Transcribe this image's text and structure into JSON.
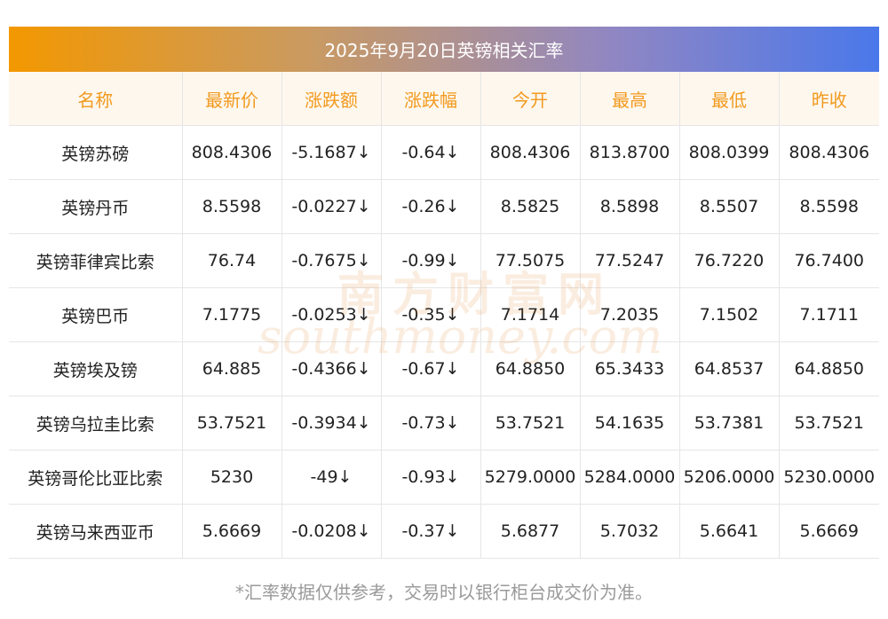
{
  "title": "2025年9月20日英镑相关汇率",
  "columns": [
    "名称",
    "最新价",
    "涨跌额",
    "涨跌幅",
    "今开",
    "最高",
    "最低",
    "昨收"
  ],
  "rows": [
    [
      "英镑苏磅",
      "808.4306",
      "-5.1687↓",
      "-0.64↓",
      "808.4306",
      "813.8700",
      "808.0399",
      "808.4306"
    ],
    [
      "英镑丹币",
      "8.5598",
      "-0.0227↓",
      "-0.26↓",
      "8.5825",
      "8.5898",
      "8.5507",
      "8.5598"
    ],
    [
      "英镑菲律宾比索",
      "76.74",
      "-0.7675↓",
      "-0.99↓",
      "77.5075",
      "77.5247",
      "76.7220",
      "76.7400"
    ],
    [
      "英镑巴币",
      "7.1775",
      "-0.0253↓",
      "-0.35↓",
      "7.1714",
      "7.2035",
      "7.1502",
      "7.1711"
    ],
    [
      "英镑埃及镑",
      "64.885",
      "-0.4366↓",
      "-0.67↓",
      "64.8850",
      "65.3433",
      "64.8537",
      "64.8850"
    ],
    [
      "英镑乌拉圭比索",
      "53.7521",
      "-0.3934↓",
      "-0.73↓",
      "53.7521",
      "54.1635",
      "53.7381",
      "53.7521"
    ],
    [
      "英镑哥伦比亚比索",
      "5230",
      "-49↓",
      "-0.93↓",
      "5279.0000",
      "5284.0000",
      "5206.0000",
      "5230.0000"
    ],
    [
      "英镑马来西亚币",
      "5.6669",
      "-0.0208↓",
      "-0.37↓",
      "5.6877",
      "5.7032",
      "5.6641",
      "5.6669"
    ]
  ],
  "footnote": "*汇率数据仅供参考，交易时以银行柜台成交价为准。",
  "watermark": {
    "cn": "南方财富网",
    "en": "southmoney.com"
  },
  "colors": {
    "header_text": "#f29a1e",
    "positive_green": "#2e8b22",
    "gradient_start": "#f39800",
    "gradient_end": "#4a78ea"
  }
}
